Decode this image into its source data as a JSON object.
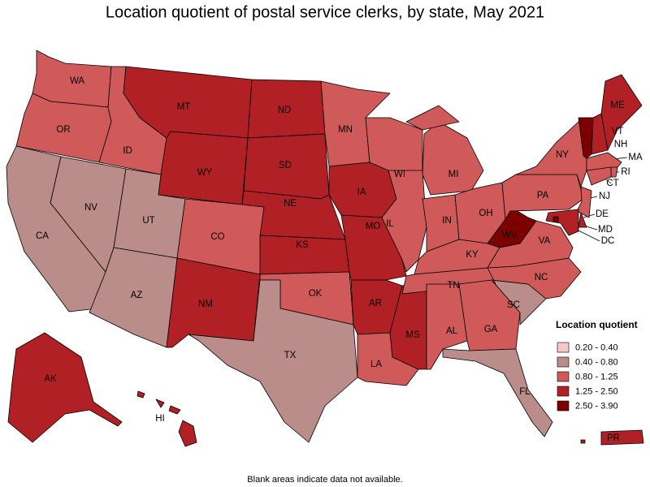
{
  "title": "Location quotient of postal service clerks, by state, May 2021",
  "legend": {
    "title": "Location quotient",
    "bins": [
      {
        "label": "0.20 - 0.40",
        "color": "#f6c9c9"
      },
      {
        "label": "0.40 - 0.80",
        "color": "#ba8c8a"
      },
      {
        "label": "0.80 - 1.25",
        "color": "#d05a5a"
      },
      {
        "label": "1.25 - 2.50",
        "color": "#b02025"
      },
      {
        "label": "2.50 - 3.90",
        "color": "#7c0000"
      }
    ]
  },
  "states": [
    {
      "label": "WA",
      "level": "0.80 - 1.25"
    },
    {
      "label": "OR",
      "level": "0.80 - 1.25"
    },
    {
      "label": "CA",
      "level": "0.40 - 0.80"
    },
    {
      "label": "NV",
      "level": "0.40 - 0.80"
    },
    {
      "label": "ID",
      "level": "0.80 - 1.25"
    },
    {
      "label": "MT",
      "level": "1.25 - 2.50"
    },
    {
      "label": "WY",
      "level": "1.25 - 2.50"
    },
    {
      "label": "UT",
      "level": "0.40 - 0.80"
    },
    {
      "label": "CO",
      "level": "0.80 - 1.25"
    },
    {
      "label": "AZ",
      "level": "0.40 - 0.80"
    },
    {
      "label": "NM",
      "level": "1.25 - 2.50"
    },
    {
      "label": "ND",
      "level": "1.25 - 2.50"
    },
    {
      "label": "SD",
      "level": "1.25 - 2.50"
    },
    {
      "label": "NE",
      "level": "1.25 - 2.50"
    },
    {
      "label": "KS",
      "level": "1.25 - 2.50"
    },
    {
      "label": "OK",
      "level": "0.80 - 1.25"
    },
    {
      "label": "TX",
      "level": "0.40 - 0.80"
    },
    {
      "label": "MN",
      "level": "0.80 - 1.25"
    },
    {
      "label": "IA",
      "level": "1.25 - 2.50"
    },
    {
      "label": "MO",
      "level": "1.25 - 2.50"
    },
    {
      "label": "AR",
      "level": "1.25 - 2.50"
    },
    {
      "label": "LA",
      "level": "0.80 - 1.25"
    },
    {
      "label": "WI",
      "level": "0.80 - 1.25"
    },
    {
      "label": "IL",
      "level": "0.80 - 1.25"
    },
    {
      "label": "MS",
      "level": "1.25 - 2.50"
    },
    {
      "label": "MI",
      "level": "0.80 - 1.25"
    },
    {
      "label": "IN",
      "level": "0.80 - 1.25"
    },
    {
      "label": "OH",
      "level": "0.80 - 1.25"
    },
    {
      "label": "KY",
      "level": "0.80 - 1.25"
    },
    {
      "label": "TN",
      "level": "0.80 - 1.25"
    },
    {
      "label": "AL",
      "level": "0.80 - 1.25"
    },
    {
      "label": "GA",
      "level": "0.80 - 1.25"
    },
    {
      "label": "SC",
      "level": "0.40 - 0.80"
    },
    {
      "label": "NC",
      "level": "0.80 - 1.25"
    },
    {
      "label": "VA",
      "level": "0.80 - 1.25"
    },
    {
      "label": "WV",
      "level": "2.50 - 3.90"
    },
    {
      "label": "PA",
      "level": "0.80 - 1.25"
    },
    {
      "label": "NY",
      "level": "0.80 - 1.25"
    },
    {
      "label": "VT",
      "level": "2.50 - 3.90"
    },
    {
      "label": "NH",
      "level": "1.25 - 2.50"
    },
    {
      "label": "ME",
      "level": "1.25 - 2.50"
    },
    {
      "label": "MA",
      "level": "0.80 - 1.25"
    },
    {
      "label": "RI",
      "level": "0.80 - 1.25"
    },
    {
      "label": "CT",
      "level": "0.80 - 1.25"
    },
    {
      "label": "NJ",
      "level": "0.80 - 1.25"
    },
    {
      "label": "DE",
      "level": "1.25 - 2.50"
    },
    {
      "label": "MD",
      "level": "1.25 - 2.50"
    },
    {
      "label": "DC",
      "level": "2.50 - 3.90"
    },
    {
      "label": "FL",
      "level": "0.40 - 0.80"
    },
    {
      "label": "AK",
      "level": "1.25 - 2.50"
    },
    {
      "label": "HI",
      "level": "1.25 - 2.50"
    },
    {
      "label": "PR",
      "level": "1.25 - 2.50"
    }
  ],
  "footnote": "Blank areas indicate data not available."
}
